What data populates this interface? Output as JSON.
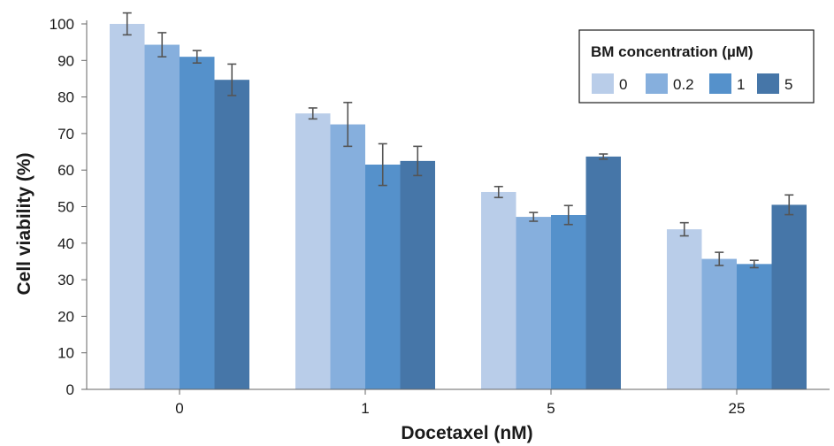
{
  "chart_data": {
    "type": "bar",
    "categories": [
      "0",
      "1",
      "5",
      "25"
    ],
    "xlabel": "Docetaxel (nM)",
    "ylabel": "Cell viability (%)",
    "ylim": [
      0,
      100
    ],
    "yticks": [
      0,
      10,
      20,
      30,
      40,
      50,
      60,
      70,
      80,
      90,
      100
    ],
    "grid": false,
    "legend": {
      "title": "BM concentration (µM)",
      "placement": "top-right"
    },
    "series": [
      {
        "name": "0",
        "color": "#b9cde9",
        "values": [
          100,
          75.5,
          54,
          43.8
        ],
        "errors": [
          3,
          1.5,
          1.5,
          1.8
        ]
      },
      {
        "name": "0.2",
        "color": "#86afdd",
        "values": [
          94.3,
          72.5,
          47.2,
          35.7
        ],
        "errors": [
          3.3,
          6,
          1.2,
          1.8
        ]
      },
      {
        "name": "1",
        "color": "#5591cb",
        "values": [
          91,
          61.5,
          47.7,
          34.3
        ],
        "errors": [
          1.7,
          5.7,
          2.6,
          1
        ]
      },
      {
        "name": "5",
        "color": "#4676a8",
        "values": [
          84.7,
          62.5,
          63.7,
          50.5
        ],
        "errors": [
          4.3,
          4,
          0.7,
          2.7
        ]
      }
    ]
  }
}
